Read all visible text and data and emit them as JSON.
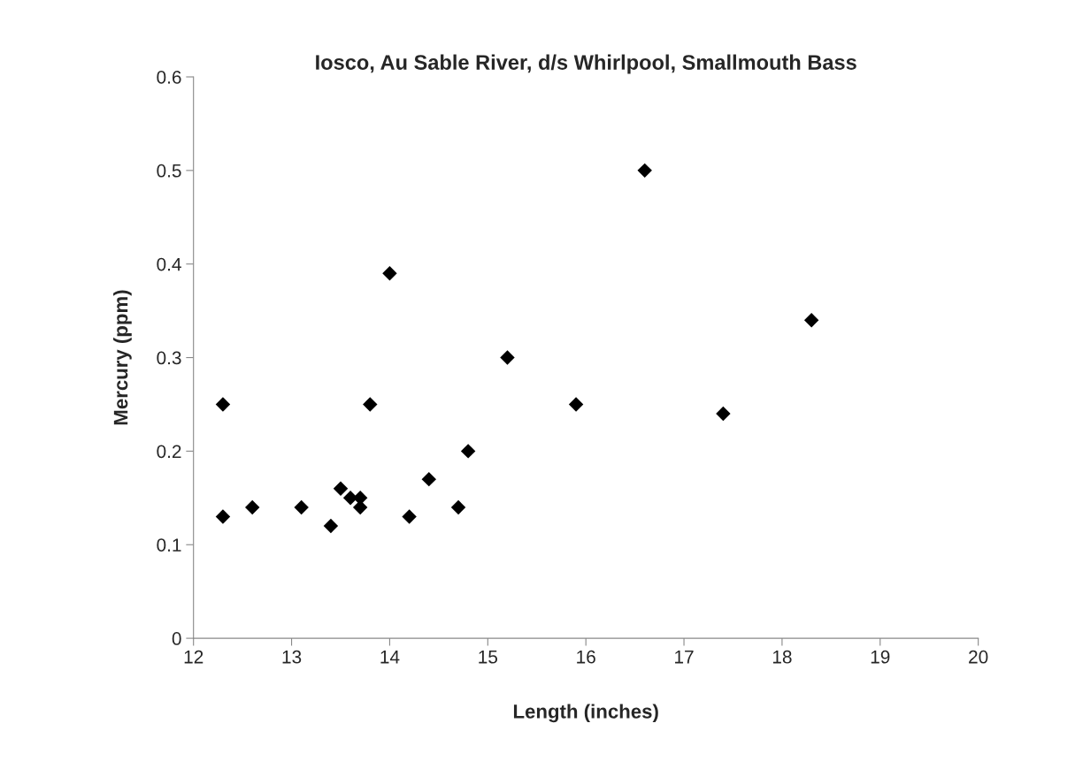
{
  "chart_data": {
    "type": "scatter",
    "title": "Iosco, Au Sable River, d/s Whirlpool, Smallmouth Bass",
    "xlabel": "Length (inches)",
    "ylabel": "Mercury (ppm)",
    "x": [
      12.3,
      12.3,
      12.6,
      13.1,
      13.4,
      13.5,
      13.6,
      13.7,
      13.7,
      13.8,
      14.0,
      14.2,
      14.4,
      14.7,
      14.8,
      15.2,
      15.9,
      16.6,
      17.4,
      18.3
    ],
    "series": [
      {
        "color": "#000000",
        "values": [
          0.25,
          0.13,
          0.14,
          0.14,
          0.12,
          0.16,
          0.15,
          0.15,
          0.14,
          0.25,
          0.39,
          0.13,
          0.17,
          0.14,
          0.2,
          0.3,
          0.25,
          0.5,
          0.24,
          0.34
        ]
      }
    ],
    "xlim": [
      12,
      20
    ],
    "xticks": [
      12,
      13,
      14,
      15,
      16,
      17,
      18,
      19,
      20
    ],
    "ylim": [
      0,
      0.6
    ],
    "yticks": [
      0,
      0.1,
      0.2,
      0.3,
      0.4,
      0.5,
      0.6
    ],
    "marker": "diamond"
  }
}
